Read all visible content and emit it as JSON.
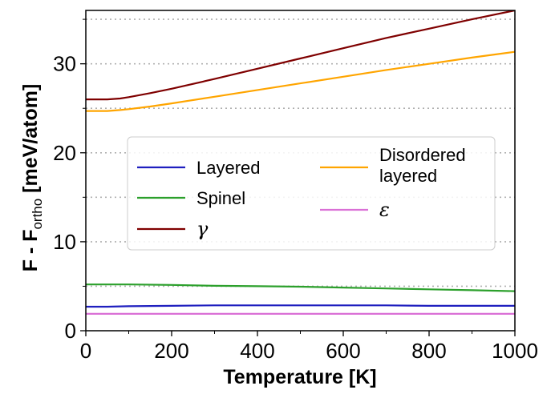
{
  "chart_data": {
    "type": "line",
    "title": "",
    "xlabel": "Temperature [K]",
    "ylabel_main": "F - F",
    "ylabel_sub": "ortho",
    "ylabel_unit": " [meV/atom]",
    "xlim": [
      0,
      1000
    ],
    "ylim": [
      0,
      36
    ],
    "x_ticks": [
      0,
      200,
      400,
      600,
      800,
      1000
    ],
    "x_tick_labels": [
      "0",
      "200",
      "400",
      "600",
      "800",
      "1000"
    ],
    "y_ticks": [
      0,
      10,
      20,
      30
    ],
    "y_tick_labels": [
      "0",
      "10",
      "20",
      "30"
    ],
    "x_minor_ticks": [
      100,
      300,
      500,
      700,
      900
    ],
    "y_minor_ticks": [
      5,
      15,
      25,
      35
    ],
    "grid_y": [
      5,
      10,
      15,
      20,
      25,
      30,
      35
    ],
    "legend_position": "center-left",
    "series": [
      {
        "name": "Layered",
        "color": "#1f1fbf",
        "x": [
          0,
          50,
          100,
          200,
          300,
          400,
          500,
          600,
          700,
          800,
          900,
          1000
        ],
        "values": [
          2.7,
          2.7,
          2.75,
          2.8,
          2.85,
          2.85,
          2.85,
          2.85,
          2.85,
          2.8,
          2.8,
          2.8
        ]
      },
      {
        "name": "Spinel",
        "color": "#2ca02c",
        "x": [
          0,
          50,
          100,
          200,
          300,
          400,
          500,
          600,
          700,
          800,
          900,
          1000
        ],
        "values": [
          5.2,
          5.2,
          5.2,
          5.15,
          5.05,
          5.0,
          4.95,
          4.85,
          4.75,
          4.65,
          4.55,
          4.45
        ]
      },
      {
        "name": "γ",
        "color": "#7f0000",
        "x": [
          0,
          50,
          80,
          100,
          150,
          200,
          300,
          400,
          500,
          600,
          700,
          800,
          900,
          1000
        ],
        "values": [
          26.0,
          26.0,
          26.1,
          26.25,
          26.7,
          27.2,
          28.3,
          29.45,
          30.6,
          31.75,
          32.9,
          33.95,
          35.0,
          36.0
        ]
      },
      {
        "name": "Disordered layered",
        "color": "#ffa500",
        "x": [
          0,
          50,
          80,
          100,
          150,
          200,
          300,
          400,
          500,
          600,
          700,
          800,
          900,
          1000
        ],
        "values": [
          24.7,
          24.7,
          24.8,
          24.9,
          25.2,
          25.55,
          26.3,
          27.05,
          27.8,
          28.55,
          29.3,
          30.0,
          30.7,
          31.35
        ]
      },
      {
        "name": "ε",
        "color": "#da70d6",
        "x": [
          0,
          200,
          400,
          600,
          800,
          1000
        ],
        "values": [
          1.9,
          1.9,
          1.9,
          1.9,
          1.9,
          1.9
        ]
      }
    ],
    "legend": {
      "col1": [
        "Layered",
        "Spinel",
        "γ"
      ],
      "col2_line1": "Disordered",
      "col2_line2": "layered",
      "col2_last": "ε"
    }
  }
}
